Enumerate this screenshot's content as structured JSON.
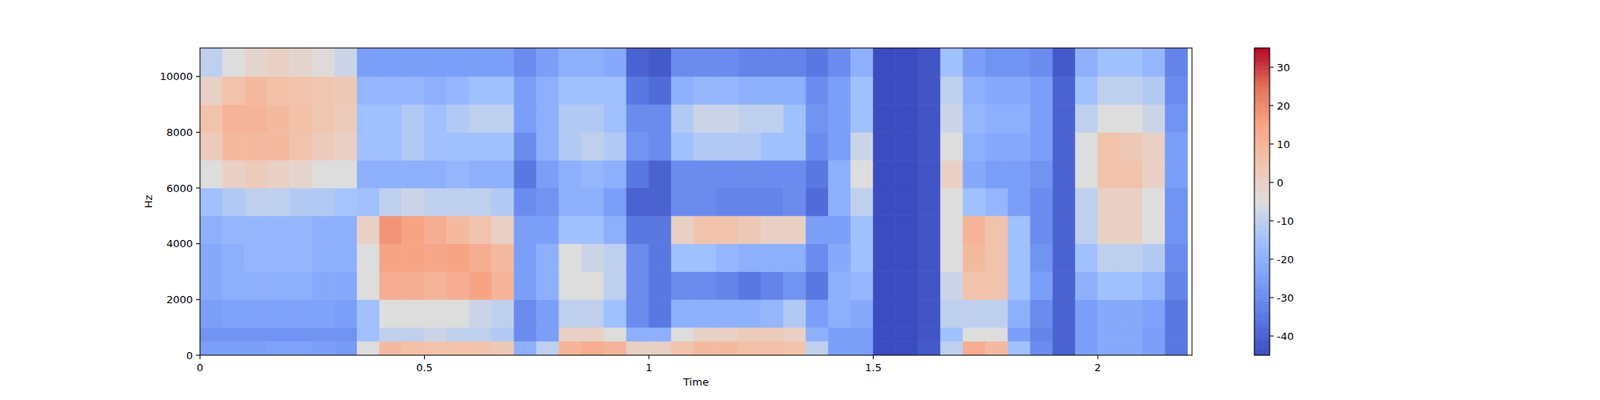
{
  "chart_data": {
    "type": "heatmap",
    "x_label": "Time",
    "y_label": "Hz",
    "xlim": [
      0,
      2.21
    ],
    "ylim": [
      0,
      11025
    ],
    "xticks": [
      0,
      0.5,
      1,
      1.5,
      2
    ],
    "yticks": [
      0,
      2000,
      4000,
      6000,
      8000,
      10000
    ],
    "x_bins": [
      0,
      0.05,
      0.1,
      0.15,
      0.2,
      0.25,
      0.3,
      0.35,
      0.4,
      0.45,
      0.5,
      0.55,
      0.6,
      0.65,
      0.7,
      0.75,
      0.8,
      0.85,
      0.9,
      0.95,
      1.0,
      1.05,
      1.1,
      1.15,
      1.2,
      1.25,
      1.3,
      1.35,
      1.4,
      1.45,
      1.5,
      1.55,
      1.6,
      1.65,
      1.7,
      1.75,
      1.8,
      1.85,
      1.9,
      1.95,
      2.0,
      2.05,
      2.1,
      2.15,
      2.2
    ],
    "y_bins": [
      0,
      500,
      1000,
      2000,
      3000,
      4000,
      5000,
      6000,
      7000,
      8000,
      9000,
      10000,
      11025
    ],
    "cells": [
      [
        -25,
        -28,
        -25,
        -22,
        -22,
        -20,
        -15,
        -5,
        2,
        5,
        0,
        -10
      ],
      [
        -25,
        -28,
        -24,
        -20,
        -20,
        -18,
        -12,
        0,
        8,
        10,
        5,
        -5
      ],
      [
        -25,
        -28,
        -24,
        -20,
        -18,
        -18,
        -10,
        2,
        8,
        10,
        8,
        -2
      ],
      [
        -24,
        -28,
        -24,
        -20,
        -18,
        -18,
        -10,
        0,
        8,
        8,
        6,
        0
      ],
      [
        -24,
        -28,
        -24,
        -20,
        -18,
        -18,
        -12,
        -2,
        5,
        6,
        5,
        -2
      ],
      [
        -25,
        -28,
        -24,
        -22,
        -20,
        -20,
        -12,
        -5,
        2,
        4,
        4,
        -4
      ],
      [
        -26,
        -28,
        -25,
        -22,
        -20,
        -20,
        -14,
        -5,
        0,
        2,
        3,
        -8
      ],
      [
        -5,
        -15,
        -15,
        -5,
        -5,
        0,
        -15,
        -20,
        -15,
        -15,
        -18,
        -25
      ],
      [
        8,
        -10,
        -5,
        12,
        15,
        18,
        -10,
        -20,
        -15,
        -15,
        -18,
        -25
      ],
      [
        6,
        -10,
        -5,
        12,
        15,
        15,
        -8,
        -20,
        -12,
        -12,
        -18,
        -25
      ],
      [
        5,
        -8,
        -5,
        10,
        14,
        12,
        -10,
        -20,
        -15,
        -15,
        -20,
        -25
      ],
      [
        5,
        -10,
        -5,
        12,
        15,
        8,
        -10,
        -18,
        -15,
        -12,
        -18,
        -25
      ],
      [
        5,
        -10,
        -8,
        15,
        12,
        5,
        -10,
        -20,
        -15,
        -10,
        -15,
        -25
      ],
      [
        3,
        -12,
        -10,
        10,
        8,
        0,
        -12,
        -20,
        -15,
        -10,
        -15,
        -25
      ],
      [
        -20,
        -30,
        -30,
        -25,
        -25,
        -25,
        -30,
        -35,
        -30,
        -25,
        -25,
        -30
      ],
      [
        -10,
        -25,
        -25,
        -20,
        -20,
        -25,
        -28,
        -25,
        -20,
        -20,
        -20,
        -25
      ],
      [
        10,
        0,
        -10,
        -5,
        -5,
        -15,
        -20,
        -20,
        -12,
        -12,
        -15,
        -20
      ],
      [
        12,
        0,
        -10,
        -5,
        -8,
        -15,
        -20,
        -18,
        -10,
        -12,
        -15,
        -20
      ],
      [
        10,
        -5,
        -15,
        -10,
        -10,
        -20,
        -25,
        -20,
        -12,
        -15,
        -15,
        -22
      ],
      [
        0,
        -20,
        -30,
        -30,
        -30,
        -35,
        -40,
        -35,
        -28,
        -30,
        -35,
        -40
      ],
      [
        0,
        -20,
        -35,
        -35,
        -35,
        -35,
        -40,
        -40,
        -30,
        -30,
        -38,
        -42
      ],
      [
        5,
        -5,
        -20,
        -30,
        -15,
        0,
        -30,
        -30,
        -15,
        -12,
        -20,
        -30
      ],
      [
        8,
        0,
        -20,
        -30,
        -15,
        5,
        -30,
        -30,
        -12,
        -8,
        -18,
        -30
      ],
      [
        8,
        0,
        -20,
        -32,
        -18,
        5,
        -32,
        -30,
        -12,
        -8,
        -18,
        -30
      ],
      [
        6,
        2,
        -20,
        -35,
        -20,
        3,
        -32,
        -30,
        -12,
        -10,
        -20,
        -32
      ],
      [
        6,
        2,
        -18,
        -32,
        -20,
        0,
        -32,
        -30,
        -15,
        -10,
        -20,
        -32
      ],
      [
        5,
        0,
        -12,
        -28,
        -20,
        0,
        -30,
        -30,
        -15,
        -15,
        -20,
        -32
      ],
      [
        -10,
        -20,
        -25,
        -35,
        -30,
        -25,
        -38,
        -35,
        -30,
        -28,
        -30,
        -35
      ],
      [
        -25,
        -25,
        -20,
        -20,
        -22,
        -25,
        -20,
        -20,
        -25,
        -25,
        -25,
        -30
      ],
      [
        -25,
        -25,
        -22,
        -18,
        -15,
        -15,
        -10,
        -5,
        -8,
        -15,
        -15,
        -20
      ],
      [
        -45,
        -45,
        -45,
        -45,
        -45,
        -45,
        -45,
        -45,
        -45,
        -45,
        -45,
        -45
      ],
      [
        -45,
        -45,
        -45,
        -45,
        -45,
        -45,
        -45,
        -45,
        -45,
        -45,
        -45,
        -45
      ],
      [
        -42,
        -43,
        -43,
        -43,
        -43,
        -43,
        -43,
        -43,
        -43,
        -43,
        -43,
        -43
      ],
      [
        -10,
        -15,
        -10,
        -8,
        -5,
        -5,
        -5,
        0,
        -5,
        -8,
        -10,
        -15
      ],
      [
        12,
        -5,
        -10,
        5,
        8,
        10,
        -15,
        -22,
        -20,
        -18,
        -20,
        -25
      ],
      [
        8,
        -5,
        -10,
        5,
        5,
        5,
        -18,
        -25,
        -22,
        -20,
        -22,
        -28
      ],
      [
        -15,
        -25,
        -20,
        -15,
        -15,
        -15,
        -25,
        -25,
        -22,
        -20,
        -22,
        -28
      ],
      [
        -30,
        -32,
        -30,
        -25,
        -28,
        -30,
        -30,
        -28,
        -25,
        -25,
        -25,
        -30
      ],
      [
        -40,
        -40,
        -40,
        -40,
        -40,
        -40,
        -40,
        -40,
        -40,
        -40,
        -40,
        -42
      ],
      [
        -25,
        -25,
        -25,
        -20,
        -15,
        -10,
        -10,
        -5,
        -5,
        -10,
        -15,
        -20
      ],
      [
        -22,
        -22,
        -22,
        -15,
        -10,
        0,
        0,
        5,
        5,
        -5,
        -10,
        -15
      ],
      [
        -22,
        -22,
        -22,
        -15,
        -10,
        0,
        0,
        5,
        3,
        -5,
        -10,
        -15
      ],
      [
        -25,
        -25,
        -24,
        -18,
        -12,
        -5,
        -5,
        0,
        0,
        -8,
        -12,
        -18
      ],
      [
        -35,
        -35,
        -35,
        -32,
        -30,
        -28,
        -28,
        -25,
        -25,
        -28,
        -30,
        -32
      ]
    ],
    "clim": [
      -45,
      35
    ],
    "cticks": [
      -40,
      -30,
      -20,
      -10,
      0,
      10,
      20,
      30
    ]
  }
}
